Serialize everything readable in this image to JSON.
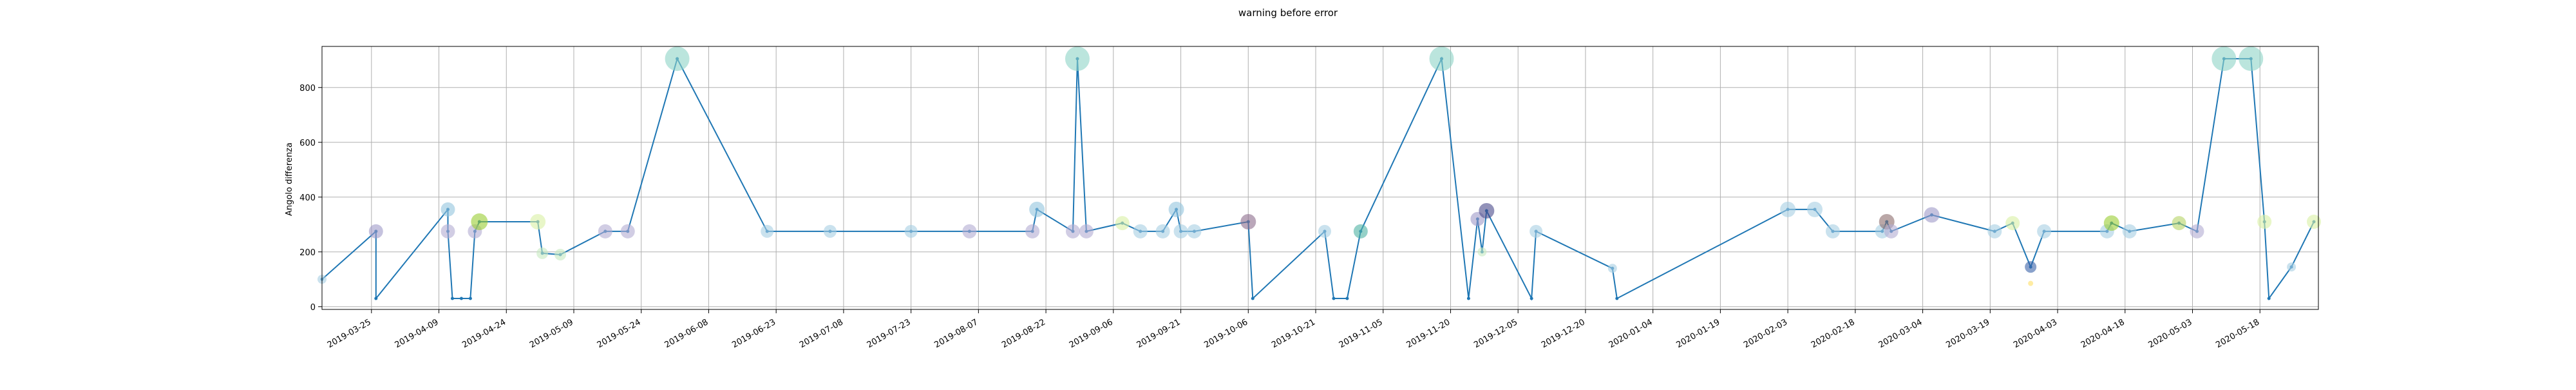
{
  "chart_data": {
    "type": "scatter",
    "title": "warning before error",
    "xlabel": "",
    "ylabel": "Angolo differenza",
    "ylim": [
      -10,
      950
    ],
    "yticks": [
      0,
      200,
      400,
      600,
      800
    ],
    "xlim": [
      "2019-03-14",
      "2020-05-31"
    ],
    "xticks": [
      "2019-03-25",
      "2019-04-09",
      "2019-04-24",
      "2019-05-09",
      "2019-05-24",
      "2019-06-08",
      "2019-06-23",
      "2019-07-08",
      "2019-07-23",
      "2019-08-07",
      "2019-08-22",
      "2019-09-06",
      "2019-09-21",
      "2019-10-06",
      "2019-10-21",
      "2019-11-05",
      "2019-11-20",
      "2019-12-05",
      "2019-12-20",
      "2020-01-04",
      "2020-01-19",
      "2020-02-03",
      "2020-02-18",
      "2020-03-04",
      "2020-03-19",
      "2020-04-03",
      "2020-04-18",
      "2020-05-03",
      "2020-05-18"
    ],
    "grid": true,
    "line_color": "#1f77b4",
    "series": [
      {
        "values": [
          {
            "x": "2019-03-14",
            "y": 100
          },
          {
            "x": "2019-03-26",
            "y": 275
          },
          {
            "x": "2019-03-26",
            "y": 30
          },
          {
            "x": "2019-04-11",
            "y": 355
          },
          {
            "x": "2019-04-11",
            "y": 275
          },
          {
            "x": "2019-04-12",
            "y": 30
          },
          {
            "x": "2019-04-14",
            "y": 30
          },
          {
            "x": "2019-04-16",
            "y": 30
          },
          {
            "x": "2019-04-17",
            "y": 275
          },
          {
            "x": "2019-04-18",
            "y": 310
          },
          {
            "x": "2019-05-01",
            "y": 310
          },
          {
            "x": "2019-05-02",
            "y": 195
          },
          {
            "x": "2019-05-06",
            "y": 190
          },
          {
            "x": "2019-05-16",
            "y": 275
          },
          {
            "x": "2019-05-21",
            "y": 275
          },
          {
            "x": "2019-06-01",
            "y": 905
          },
          {
            "x": "2019-06-21",
            "y": 275
          },
          {
            "x": "2019-07-05",
            "y": 275
          },
          {
            "x": "2019-07-23",
            "y": 275
          },
          {
            "x": "2019-08-05",
            "y": 275
          },
          {
            "x": "2019-08-19",
            "y": 275
          },
          {
            "x": "2019-08-20",
            "y": 355
          },
          {
            "x": "2019-08-28",
            "y": 275
          },
          {
            "x": "2019-08-29",
            "y": 905
          },
          {
            "x": "2019-08-31",
            "y": 275
          },
          {
            "x": "2019-09-08",
            "y": 305
          },
          {
            "x": "2019-09-12",
            "y": 275
          },
          {
            "x": "2019-09-17",
            "y": 275
          },
          {
            "x": "2019-09-20",
            "y": 355
          },
          {
            "x": "2019-09-21",
            "y": 275
          },
          {
            "x": "2019-09-24",
            "y": 275
          },
          {
            "x": "2019-10-06",
            "y": 310
          },
          {
            "x": "2019-10-07",
            "y": 30
          },
          {
            "x": "2019-10-23",
            "y": 275
          },
          {
            "x": "2019-10-25",
            "y": 30
          },
          {
            "x": "2019-10-28",
            "y": 30
          },
          {
            "x": "2019-10-31",
            "y": 275
          },
          {
            "x": "2019-11-18",
            "y": 905
          },
          {
            "x": "2019-11-24",
            "y": 30
          },
          {
            "x": "2019-11-26",
            "y": 320
          },
          {
            "x": "2019-11-27",
            "y": 200
          },
          {
            "x": "2019-11-28",
            "y": 350
          },
          {
            "x": "2019-12-08",
            "y": 30
          },
          {
            "x": "2019-12-09",
            "y": 275
          },
          {
            "x": "2019-12-26",
            "y": 140
          },
          {
            "x": "2019-12-27",
            "y": 30
          },
          {
            "x": "2020-02-03",
            "y": 355
          },
          {
            "x": "2020-02-09",
            "y": 355
          },
          {
            "x": "2020-02-13",
            "y": 275
          },
          {
            "x": "2020-02-24",
            "y": 275
          },
          {
            "x": "2020-02-25",
            "y": 310
          },
          {
            "x": "2020-02-26",
            "y": 275
          },
          {
            "x": "2020-03-06",
            "y": 335
          },
          {
            "x": "2020-03-20",
            "y": 275
          },
          {
            "x": "2020-03-24",
            "y": 305
          },
          {
            "x": "2020-03-28",
            "y": 145
          },
          {
            "x": "2020-03-31",
            "y": 275
          },
          {
            "x": "2020-04-14",
            "y": 275
          },
          {
            "x": "2020-04-15",
            "y": 305
          },
          {
            "x": "2020-04-19",
            "y": 275
          },
          {
            "x": "2020-04-30",
            "y": 305
          },
          {
            "x": "2020-05-04",
            "y": 275
          },
          {
            "x": "2020-05-10",
            "y": 905
          },
          {
            "x": "2020-05-16",
            "y": 905
          },
          {
            "x": "2020-05-19",
            "y": 310
          },
          {
            "x": "2020-05-20",
            "y": 30
          },
          {
            "x": "2020-05-25",
            "y": 145
          },
          {
            "x": "2020-05-30",
            "y": 310
          }
        ]
      }
    ],
    "markers": [
      {
        "x": "2019-03-14",
        "y": 100,
        "size": 7,
        "color": "#a6cee3"
      },
      {
        "x": "2019-03-26",
        "y": 275,
        "size": 11,
        "color": "#9e9ac8"
      },
      {
        "x": "2019-04-11",
        "y": 355,
        "size": 11,
        "color": "#92c5de"
      },
      {
        "x": "2019-04-11",
        "y": 275,
        "size": 11,
        "color": "#b2abd2"
      },
      {
        "x": "2019-04-17",
        "y": 275,
        "size": 11,
        "color": "#b2abd2"
      },
      {
        "x": "2019-04-18",
        "y": 310,
        "size": 13,
        "color": "#9acd32"
      },
      {
        "x": "2019-05-01",
        "y": 310,
        "size": 12,
        "color": "#d9f0a3"
      },
      {
        "x": "2019-05-02",
        "y": 195,
        "size": 9,
        "color": "#c7e9c0"
      },
      {
        "x": "2019-05-06",
        "y": 190,
        "size": 9,
        "color": "#c7e9c0"
      },
      {
        "x": "2019-05-16",
        "y": 275,
        "size": 11,
        "color": "#b2abd2"
      },
      {
        "x": "2019-05-21",
        "y": 275,
        "size": 11,
        "color": "#b2abd2"
      },
      {
        "x": "2019-06-01",
        "y": 905,
        "size": 19,
        "color": "#8dd3c7"
      },
      {
        "x": "2019-06-21",
        "y": 275,
        "size": 10,
        "color": "#a6cee3"
      },
      {
        "x": "2019-07-05",
        "y": 275,
        "size": 10,
        "color": "#a6cee3"
      },
      {
        "x": "2019-07-23",
        "y": 275,
        "size": 10,
        "color": "#a6cee3"
      },
      {
        "x": "2019-08-05",
        "y": 275,
        "size": 11,
        "color": "#b2abd2"
      },
      {
        "x": "2019-08-19",
        "y": 275,
        "size": 11,
        "color": "#b2abd2"
      },
      {
        "x": "2019-08-20",
        "y": 355,
        "size": 12,
        "color": "#92c5de"
      },
      {
        "x": "2019-08-28",
        "y": 275,
        "size": 11,
        "color": "#b2abd2"
      },
      {
        "x": "2019-08-29",
        "y": 905,
        "size": 19,
        "color": "#8dd3c7"
      },
      {
        "x": "2019-08-31",
        "y": 275,
        "size": 11,
        "color": "#b2abd2"
      },
      {
        "x": "2019-09-08",
        "y": 305,
        "size": 11,
        "color": "#d9f0a3"
      },
      {
        "x": "2019-09-12",
        "y": 275,
        "size": 11,
        "color": "#a6cee3"
      },
      {
        "x": "2019-09-17",
        "y": 275,
        "size": 11,
        "color": "#a6cee3"
      },
      {
        "x": "2019-09-20",
        "y": 355,
        "size": 12,
        "color": "#92c5de"
      },
      {
        "x": "2019-09-21",
        "y": 275,
        "size": 11,
        "color": "#a6cee3"
      },
      {
        "x": "2019-09-24",
        "y": 275,
        "size": 11,
        "color": "#a6cee3"
      },
      {
        "x": "2019-10-06",
        "y": 310,
        "size": 12,
        "color": "#8c6d8c"
      },
      {
        "x": "2019-10-23",
        "y": 275,
        "size": 10,
        "color": "#a6cee3"
      },
      {
        "x": "2019-10-31",
        "y": 275,
        "size": 11,
        "color": "#4eb3a3"
      },
      {
        "x": "2019-11-18",
        "y": 905,
        "size": 19,
        "color": "#8dd3c7"
      },
      {
        "x": "2019-11-26",
        "y": 320,
        "size": 11,
        "color": "#9e9ac8"
      },
      {
        "x": "2019-11-27",
        "y": 200,
        "size": 7,
        "color": "#c7e9c0"
      },
      {
        "x": "2019-11-28",
        "y": 350,
        "size": 12,
        "color": "#4a4a8a"
      },
      {
        "x": "2019-12-09",
        "y": 275,
        "size": 10,
        "color": "#a6cee3"
      },
      {
        "x": "2019-12-26",
        "y": 140,
        "size": 7,
        "color": "#a6cee3"
      },
      {
        "x": "2020-02-03",
        "y": 355,
        "size": 12,
        "color": "#a6cee3"
      },
      {
        "x": "2020-02-09",
        "y": 355,
        "size": 12,
        "color": "#a6cee3"
      },
      {
        "x": "2020-02-13",
        "y": 275,
        "size": 11,
        "color": "#a6cee3"
      },
      {
        "x": "2020-02-24",
        "y": 275,
        "size": 11,
        "color": "#a6cee3"
      },
      {
        "x": "2020-02-25",
        "y": 310,
        "size": 12,
        "color": "#8c6d6d"
      },
      {
        "x": "2020-02-26",
        "y": 275,
        "size": 11,
        "color": "#b2abd2"
      },
      {
        "x": "2020-03-06",
        "y": 335,
        "size": 12,
        "color": "#9e9ac8"
      },
      {
        "x": "2020-03-20",
        "y": 275,
        "size": 11,
        "color": "#a6cee3"
      },
      {
        "x": "2020-03-24",
        "y": 305,
        "size": 11,
        "color": "#d9f0a3"
      },
      {
        "x": "2020-03-28",
        "y": 145,
        "size": 9,
        "color": "#3a62a8"
      },
      {
        "x": "2020-03-28",
        "y": 85,
        "size": 4,
        "color": "#ffe066"
      },
      {
        "x": "2020-03-31",
        "y": 275,
        "size": 11,
        "color": "#a6cee3"
      },
      {
        "x": "2020-04-14",
        "y": 275,
        "size": 11,
        "color": "#a6cee3"
      },
      {
        "x": "2020-04-15",
        "y": 305,
        "size": 12,
        "color": "#9acd32"
      },
      {
        "x": "2020-04-19",
        "y": 275,
        "size": 11,
        "color": "#a6cee3"
      },
      {
        "x": "2020-04-30",
        "y": 305,
        "size": 11,
        "color": "#b5d465"
      },
      {
        "x": "2020-05-04",
        "y": 275,
        "size": 11,
        "color": "#b2abd2"
      },
      {
        "x": "2020-05-10",
        "y": 905,
        "size": 19,
        "color": "#8dd3c7"
      },
      {
        "x": "2020-05-16",
        "y": 905,
        "size": 19,
        "color": "#8dd3c7"
      },
      {
        "x": "2020-05-19",
        "y": 310,
        "size": 11,
        "color": "#d9f0a3"
      },
      {
        "x": "2020-05-25",
        "y": 145,
        "size": 7,
        "color": "#a6cee3"
      },
      {
        "x": "2020-05-30",
        "y": 310,
        "size": 11,
        "color": "#d9f0a3"
      }
    ]
  }
}
